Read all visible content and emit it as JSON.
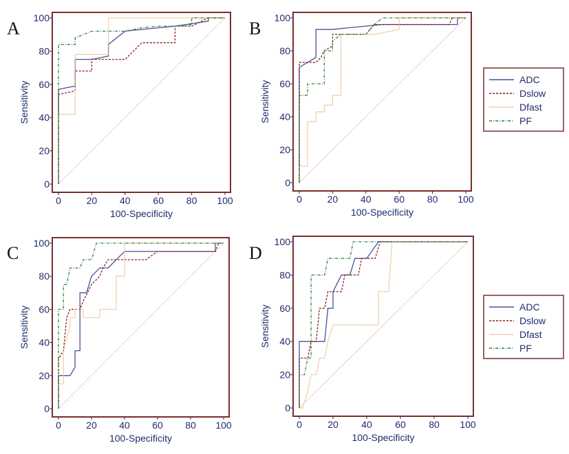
{
  "colors": {
    "frame": "#7b2c2c",
    "axis": "#1f2a6e",
    "diagonal": "#c98a8a"
  },
  "series_styles": [
    {
      "name": "ADC",
      "color": "#4a4f96",
      "dash": ""
    },
    {
      "name": "Dslow",
      "color": "#8b1c1c",
      "dash": "3,2"
    },
    {
      "name": "Dfast",
      "color": "#e8b98a",
      "dash": "2,1"
    },
    {
      "name": "PF",
      "color": "#2e7d3a",
      "dash": "4,2,1,2"
    }
  ],
  "legends": [
    {
      "items": [
        "ADC",
        "Dslow",
        "Dfast",
        "PF"
      ]
    },
    {
      "items": [
        "ADC",
        "Dslow",
        "Dfast",
        "PF"
      ]
    }
  ],
  "chart_data": [
    {
      "panel": "A",
      "type": "line",
      "xlabel": "100-Specificity",
      "ylabel": "Sensitivity",
      "xlim": [
        0,
        100
      ],
      "ylim": [
        0,
        100
      ],
      "xticks": [
        0,
        20,
        40,
        60,
        80,
        100
      ],
      "yticks": [
        0,
        20,
        40,
        60,
        80,
        100
      ],
      "series": [
        {
          "name": "ADC",
          "points": [
            [
              0,
              0
            ],
            [
              0,
              57
            ],
            [
              10,
              59
            ],
            [
              10,
              75
            ],
            [
              20,
              75
            ],
            [
              30,
              77
            ],
            [
              30,
              84
            ],
            [
              40,
              92
            ],
            [
              50,
              93
            ],
            [
              70,
              95
            ],
            [
              90,
              98
            ],
            [
              90,
              100
            ],
            [
              100,
              100
            ]
          ]
        },
        {
          "name": "Dslow",
          "points": [
            [
              0,
              0
            ],
            [
              0,
              54
            ],
            [
              10,
              56
            ],
            [
              10,
              68
            ],
            [
              20,
              68
            ],
            [
              20,
              75
            ],
            [
              40,
              75
            ],
            [
              50,
              85
            ],
            [
              70,
              85
            ],
            [
              70,
              95
            ],
            [
              80,
              95
            ],
            [
              90,
              100
            ],
            [
              100,
              100
            ]
          ]
        },
        {
          "name": "Dfast",
          "points": [
            [
              0,
              0
            ],
            [
              0,
              42
            ],
            [
              10,
              42
            ],
            [
              10,
              78
            ],
            [
              30,
              78
            ],
            [
              30,
              100
            ],
            [
              100,
              100
            ]
          ]
        },
        {
          "name": "PF",
          "points": [
            [
              0,
              0
            ],
            [
              0,
              84
            ],
            [
              10,
              84
            ],
            [
              10,
              88
            ],
            [
              20,
              92
            ],
            [
              30,
              92
            ],
            [
              40,
              92
            ],
            [
              50,
              94
            ],
            [
              60,
              95
            ],
            [
              70,
              95
            ],
            [
              80,
              96
            ],
            [
              80,
              100
            ],
            [
              100,
              100
            ]
          ]
        }
      ]
    },
    {
      "panel": "B",
      "type": "line",
      "xlabel": "100-Specificity",
      "ylabel": "Sensitivity",
      "xlim": [
        0,
        100
      ],
      "ylim": [
        0,
        100
      ],
      "xticks": [
        0,
        20,
        40,
        60,
        80,
        100
      ],
      "yticks": [
        0,
        20,
        40,
        60,
        80,
        100
      ],
      "series": [
        {
          "name": "ADC",
          "points": [
            [
              0,
              0
            ],
            [
              0,
              70
            ],
            [
              5,
              73
            ],
            [
              10,
              76
            ],
            [
              10,
              93
            ],
            [
              20,
              93
            ],
            [
              50,
              96
            ],
            [
              90,
              96
            ],
            [
              95,
              96
            ],
            [
              95,
              100
            ],
            [
              100,
              100
            ]
          ]
        },
        {
          "name": "Dslow",
          "points": [
            [
              0,
              0
            ],
            [
              0,
              73
            ],
            [
              10,
              73
            ],
            [
              13,
              76
            ],
            [
              15,
              80
            ],
            [
              20,
              83
            ],
            [
              20,
              90
            ],
            [
              40,
              90
            ],
            [
              45,
              96
            ],
            [
              90,
              96
            ],
            [
              92,
              100
            ],
            [
              100,
              100
            ]
          ]
        },
        {
          "name": "Dfast",
          "points": [
            [
              0,
              0
            ],
            [
              0,
              10
            ],
            [
              5,
              10
            ],
            [
              5,
              37
            ],
            [
              10,
              37
            ],
            [
              10,
              43
            ],
            [
              15,
              43
            ],
            [
              15,
              47
            ],
            [
              20,
              47
            ],
            [
              20,
              53
            ],
            [
              25,
              53
            ],
            [
              25,
              90
            ],
            [
              45,
              90
            ],
            [
              60,
              93
            ],
            [
              60,
              100
            ],
            [
              100,
              100
            ]
          ]
        },
        {
          "name": "PF",
          "points": [
            [
              0,
              0
            ],
            [
              0,
              53
            ],
            [
              5,
              53
            ],
            [
              5,
              60
            ],
            [
              15,
              60
            ],
            [
              15,
              80
            ],
            [
              20,
              80
            ],
            [
              20,
              86
            ],
            [
              25,
              90
            ],
            [
              40,
              90
            ],
            [
              45,
              96
            ],
            [
              50,
              100
            ],
            [
              100,
              100
            ]
          ]
        }
      ]
    },
    {
      "panel": "C",
      "type": "line",
      "xlabel": "100-Specificity",
      "ylabel": "Sensitivity",
      "xlim": [
        0,
        100
      ],
      "ylim": [
        0,
        100
      ],
      "xticks": [
        0,
        20,
        40,
        60,
        80,
        100
      ],
      "yticks": [
        0,
        20,
        40,
        60,
        80,
        100
      ],
      "series": [
        {
          "name": "ADC",
          "points": [
            [
              0,
              0
            ],
            [
              0,
              20
            ],
            [
              7,
              20
            ],
            [
              10,
              25
            ],
            [
              10,
              35
            ],
            [
              13,
              35
            ],
            [
              13,
              70
            ],
            [
              17,
              70
            ],
            [
              20,
              80
            ],
            [
              25,
              85
            ],
            [
              30,
              85
            ],
            [
              35,
              90
            ],
            [
              40,
              95
            ],
            [
              67,
              95
            ],
            [
              95,
              95
            ],
            [
              95,
              100
            ],
            [
              100,
              100
            ]
          ]
        },
        {
          "name": "Dslow",
          "points": [
            [
              0,
              0
            ],
            [
              0,
              30
            ],
            [
              3,
              35
            ],
            [
              5,
              55
            ],
            [
              7,
              60
            ],
            [
              13,
              60
            ],
            [
              15,
              65
            ],
            [
              20,
              75
            ],
            [
              25,
              80
            ],
            [
              27,
              85
            ],
            [
              30,
              90
            ],
            [
              53,
              90
            ],
            [
              60,
              95
            ],
            [
              95,
              95
            ],
            [
              97,
              100
            ],
            [
              100,
              100
            ]
          ]
        },
        {
          "name": "Dfast",
          "points": [
            [
              0,
              0
            ],
            [
              0,
              15
            ],
            [
              3,
              15
            ],
            [
              3,
              35
            ],
            [
              7,
              50
            ],
            [
              7,
              55
            ],
            [
              10,
              55
            ],
            [
              10,
              60
            ],
            [
              15,
              60
            ],
            [
              15,
              55
            ],
            [
              25,
              55
            ],
            [
              25,
              60
            ],
            [
              35,
              60
            ],
            [
              35,
              80
            ],
            [
              40,
              80
            ],
            [
              40,
              100
            ],
            [
              100,
              100
            ]
          ]
        },
        {
          "name": "PF",
          "points": [
            [
              0,
              0
            ],
            [
              0,
              60
            ],
            [
              3,
              60
            ],
            [
              3,
              75
            ],
            [
              5,
              75
            ],
            [
              7,
              85
            ],
            [
              13,
              85
            ],
            [
              15,
              90
            ],
            [
              20,
              90
            ],
            [
              23,
              100
            ],
            [
              100,
              100
            ]
          ]
        }
      ]
    },
    {
      "panel": "D",
      "type": "line",
      "xlabel": "100-Specificity",
      "ylabel": "Sensitivity",
      "xlim": [
        0,
        100
      ],
      "ylim": [
        0,
        100
      ],
      "xticks": [
        0,
        20,
        40,
        60,
        80,
        100
      ],
      "yticks": [
        0,
        20,
        40,
        60,
        80,
        100
      ],
      "series": [
        {
          "name": "ADC",
          "points": [
            [
              0,
              0
            ],
            [
              0,
              40
            ],
            [
              15,
              40
            ],
            [
              17,
              60
            ],
            [
              20,
              60
            ],
            [
              20,
              70
            ],
            [
              25,
              80
            ],
            [
              30,
              80
            ],
            [
              33,
              90
            ],
            [
              40,
              90
            ],
            [
              47,
              100
            ],
            [
              100,
              100
            ]
          ]
        },
        {
          "name": "Dslow",
          "points": [
            [
              0,
              0
            ],
            [
              0,
              30
            ],
            [
              5,
              30
            ],
            [
              7,
              40
            ],
            [
              10,
              40
            ],
            [
              12,
              60
            ],
            [
              15,
              60
            ],
            [
              17,
              70
            ],
            [
              25,
              70
            ],
            [
              27,
              80
            ],
            [
              35,
              80
            ],
            [
              37,
              90
            ],
            [
              45,
              90
            ],
            [
              48,
              100
            ],
            [
              100,
              100
            ]
          ]
        },
        {
          "name": "Dfast",
          "points": [
            [
              0,
              0
            ],
            [
              2,
              0
            ],
            [
              5,
              10
            ],
            [
              7,
              20
            ],
            [
              10,
              20
            ],
            [
              12,
              30
            ],
            [
              15,
              30
            ],
            [
              17,
              40
            ],
            [
              20,
              50
            ],
            [
              47,
              50
            ],
            [
              47,
              70
            ],
            [
              53,
              70
            ],
            [
              55,
              100
            ],
            [
              100,
              100
            ]
          ]
        },
        {
          "name": "PF",
          "points": [
            [
              0,
              0
            ],
            [
              0,
              20
            ],
            [
              3,
              20
            ],
            [
              5,
              30
            ],
            [
              7,
              30
            ],
            [
              7,
              80
            ],
            [
              15,
              80
            ],
            [
              17,
              90
            ],
            [
              30,
              90
            ],
            [
              32,
              100
            ],
            [
              100,
              100
            ]
          ]
        }
      ]
    }
  ]
}
